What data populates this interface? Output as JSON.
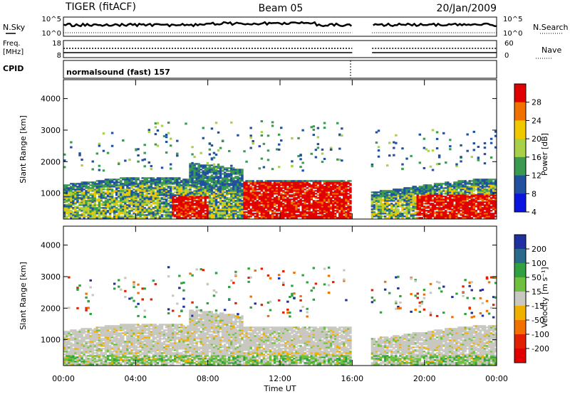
{
  "header": {
    "radar": "TIGER (fitACF)",
    "beam": "Beam 05",
    "date": "20/Jan/2009"
  },
  "panels": {
    "nsky_label": "N.Sky",
    "nsearch_label": "N.Search",
    "nsky_ticks": [
      "10^5",
      "10^0"
    ],
    "nsearch_ticks": [
      "10^5",
      "10^0"
    ],
    "freq_label_1": "Freq.",
    "freq_label_2": "[MHz]",
    "freq_ticks": [
      "18",
      "8"
    ],
    "nave_label": "Nave",
    "nave_ticks": [
      "60",
      "0"
    ],
    "cpid_label": "CPID",
    "cpid_text": "normalsound (fast) 157"
  },
  "chart_data": [
    {
      "type": "heatmap",
      "name": "power",
      "ylabel": "Slant Range [km]",
      "xlabel": "",
      "yticks": [
        1000,
        2000,
        3000,
        4000
      ],
      "ylim": [
        180,
        4600
      ],
      "xlim_hours": [
        0,
        24
      ],
      "colorbar": {
        "label": "Power [dB]",
        "ticks": [
          "28",
          "24",
          "20",
          "16",
          "12",
          "8",
          "4"
        ],
        "colors": [
          "#e10000",
          "#f07000",
          "#f0c800",
          "#a8d048",
          "#3a9a50",
          "#2050a0",
          "#0a14e0"
        ]
      }
    },
    {
      "type": "heatmap",
      "name": "velocity",
      "ylabel": "Slant Range [km]",
      "xlabel": "Time UT",
      "xticks": [
        "00:00",
        "04:00",
        "08:00",
        "12:00",
        "16:00",
        "20:00",
        "00:00"
      ],
      "yticks": [
        1000,
        2000,
        3000,
        4000
      ],
      "ylim": [
        180,
        4600
      ],
      "xlim_hours": [
        0,
        24
      ],
      "colorbar": {
        "label": "Velocity [m s⁻¹]",
        "ticks": [
          "200",
          "100",
          "50",
          "15",
          "-15",
          "-50",
          "-100",
          "-200"
        ],
        "colors": [
          "#2030a0",
          "#2a6a8a",
          "#30a040",
          "#70c040",
          "#c8c8c0",
          "#f0b000",
          "#f07000",
          "#e02000",
          "#e00000"
        ]
      }
    }
  ]
}
